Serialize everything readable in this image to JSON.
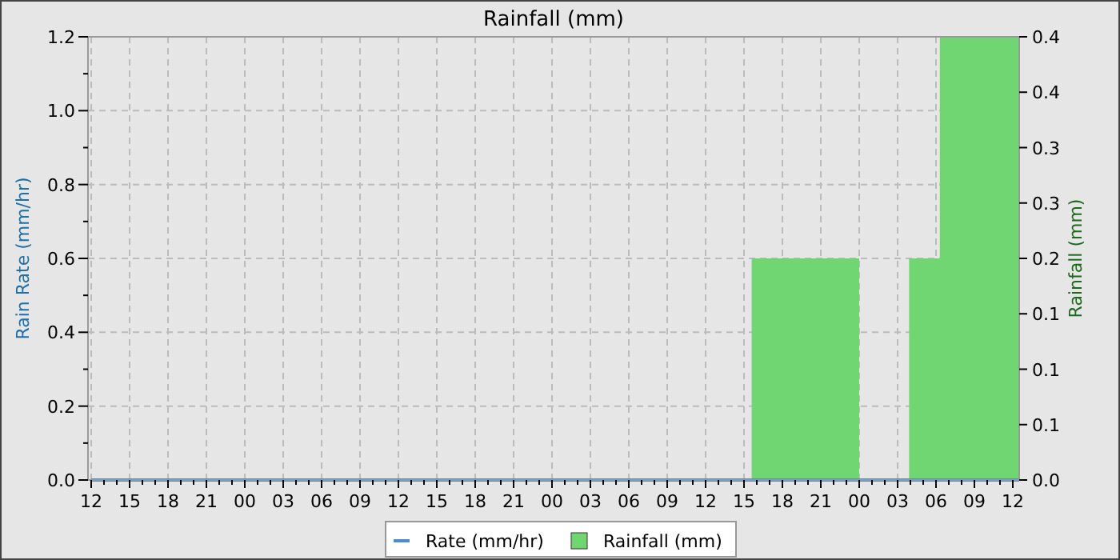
{
  "chart_data": {
    "type": "line",
    "title": "Rainfall (mm)",
    "ylabel": "Rain Rate (mm/hr)",
    "y2label": "Rainfall (mm)",
    "xlim": [
      11.75,
      84.5
    ],
    "ylim": [
      0,
      1.2
    ],
    "y2lim": [
      0,
      0.4
    ],
    "xticks": [
      {
        "value": 12,
        "label": "12"
      },
      {
        "value": 13,
        "label": null
      },
      {
        "value": 14,
        "label": null
      },
      {
        "value": 15,
        "label": "15"
      },
      {
        "value": 16,
        "label": null
      },
      {
        "value": 17,
        "label": null
      },
      {
        "value": 18,
        "label": "18"
      },
      {
        "value": 19,
        "label": null
      },
      {
        "value": 20,
        "label": null
      },
      {
        "value": 21,
        "label": "21"
      },
      {
        "value": 22,
        "label": null
      },
      {
        "value": 23,
        "label": null
      },
      {
        "value": 24,
        "label": "00"
      },
      {
        "value": 25,
        "label": null
      },
      {
        "value": 26,
        "label": null
      },
      {
        "value": 27,
        "label": "03"
      },
      {
        "value": 28,
        "label": null
      },
      {
        "value": 29,
        "label": null
      },
      {
        "value": 30,
        "label": "06"
      },
      {
        "value": 31,
        "label": null
      },
      {
        "value": 32,
        "label": null
      },
      {
        "value": 33,
        "label": "09"
      },
      {
        "value": 34,
        "label": null
      },
      {
        "value": 35,
        "label": null
      },
      {
        "value": 36,
        "label": "12"
      },
      {
        "value": 37,
        "label": null
      },
      {
        "value": 38,
        "label": null
      },
      {
        "value": 39,
        "label": "15"
      },
      {
        "value": 40,
        "label": null
      },
      {
        "value": 41,
        "label": null
      },
      {
        "value": 42,
        "label": "18"
      },
      {
        "value": 43,
        "label": null
      },
      {
        "value": 44,
        "label": null
      },
      {
        "value": 45,
        "label": "21"
      },
      {
        "value": 46,
        "label": null
      },
      {
        "value": 47,
        "label": null
      },
      {
        "value": 48,
        "label": "00"
      },
      {
        "value": 49,
        "label": null
      },
      {
        "value": 50,
        "label": null
      },
      {
        "value": 51,
        "label": "03"
      },
      {
        "value": 52,
        "label": null
      },
      {
        "value": 53,
        "label": null
      },
      {
        "value": 54,
        "label": "06"
      },
      {
        "value": 55,
        "label": null
      },
      {
        "value": 56,
        "label": null
      },
      {
        "value": 57,
        "label": "09"
      },
      {
        "value": 58,
        "label": null
      },
      {
        "value": 59,
        "label": null
      },
      {
        "value": 60,
        "label": "12"
      },
      {
        "value": 61,
        "label": null
      },
      {
        "value": 62,
        "label": null
      },
      {
        "value": 63,
        "label": "15"
      },
      {
        "value": 64,
        "label": null
      },
      {
        "value": 65,
        "label": null
      },
      {
        "value": 66,
        "label": "18"
      },
      {
        "value": 67,
        "label": null
      },
      {
        "value": 68,
        "label": null
      },
      {
        "value": 69,
        "label": "21"
      },
      {
        "value": 70,
        "label": null
      },
      {
        "value": 71,
        "label": null
      },
      {
        "value": 72,
        "label": "00"
      },
      {
        "value": 73,
        "label": null
      },
      {
        "value": 74,
        "label": null
      },
      {
        "value": 75,
        "label": "03"
      },
      {
        "value": 76,
        "label": null
      },
      {
        "value": 77,
        "label": null
      },
      {
        "value": 78,
        "label": "06"
      },
      {
        "value": 79,
        "label": null
      },
      {
        "value": 80,
        "label": null
      },
      {
        "value": 81,
        "label": "09"
      },
      {
        "value": 82,
        "label": null
      },
      {
        "value": 83,
        "label": null
      },
      {
        "value": 84,
        "label": "12"
      }
    ],
    "yticks": [
      {
        "value": 0,
        "label": "0.0"
      },
      {
        "value": 0.1,
        "label": null
      },
      {
        "value": 0.2,
        "label": "0.2"
      },
      {
        "value": 0.3,
        "label": null
      },
      {
        "value": 0.4,
        "label": "0.4"
      },
      {
        "value": 0.5,
        "label": null
      },
      {
        "value": 0.6,
        "label": "0.6"
      },
      {
        "value": 0.7,
        "label": null
      },
      {
        "value": 0.8,
        "label": "0.8"
      },
      {
        "value": 0.9,
        "label": null
      },
      {
        "value": 1.0,
        "label": "1.0"
      },
      {
        "value": 1.1,
        "label": null
      },
      {
        "value": 1.2,
        "label": "1.2"
      }
    ],
    "y2ticks": [
      {
        "value": 0,
        "label": "0.0"
      },
      {
        "value": 0.05,
        "label": "0.1"
      },
      {
        "value": 0.1,
        "label": "0.1"
      },
      {
        "value": 0.15,
        "label": "0.1"
      },
      {
        "value": 0.2,
        "label": "0.2"
      },
      {
        "value": 0.25,
        "label": "0.3"
      },
      {
        "value": 0.3,
        "label": "0.3"
      },
      {
        "value": 0.35,
        "label": "0.4"
      },
      {
        "value": 0.4,
        "label": "0.4"
      }
    ],
    "grid": true,
    "legend": "bottom",
    "series": [
      {
        "name": "Rate (mm/hr)",
        "color": "#4a90c8",
        "x": [
          12,
          84.5
        ],
        "values": [
          0,
          0
        ]
      },
      {
        "name": "Rainfall (mm)",
        "type": "area",
        "axis": "y2",
        "color": "#6fd672",
        "x": [
          12,
          63.6,
          63.6,
          72,
          72,
          75.9,
          75.9,
          78.3,
          78.3,
          84.5
        ],
        "values": [
          0,
          0,
          0.2,
          0.2,
          0,
          0,
          0.2,
          0.2,
          0.4,
          0.4
        ]
      }
    ]
  }
}
